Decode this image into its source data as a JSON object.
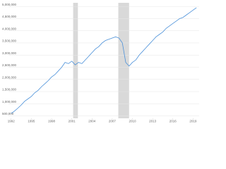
{
  "chart_data": {
    "type": "line",
    "x": [
      1992,
      1992.5,
      1993,
      1993.5,
      1994,
      1994.5,
      1995,
      1995.5,
      1996,
      1996.5,
      1997,
      1997.5,
      1998,
      1998.5,
      1999,
      1999.5,
      2000,
      2000.5,
      2001,
      2001.5,
      2002,
      2002.5,
      2003,
      2003.5,
      2004,
      2004.5,
      2005,
      2005.5,
      2006,
      2006.5,
      2007,
      2007.5,
      2008,
      2008.5,
      2009,
      2009.5,
      2010,
      2010.5,
      2011,
      2011.5,
      2012,
      2012.5,
      2013,
      2013.5,
      2014,
      2014.5,
      2015,
      2015.5,
      2016,
      2016.5,
      2017,
      2017.5,
      2018,
      2018.5,
      2019,
      2019.5
    ],
    "series": [
      {
        "color": "#4a90d9",
        "values": [
          600000,
          700000,
          820000,
          950000,
          1100000,
          1200000,
          1300000,
          1450000,
          1550000,
          1700000,
          1820000,
          1950000,
          2100000,
          2200000,
          2350000,
          2500000,
          2700000,
          2650000,
          2750000,
          2600000,
          2700000,
          2650000,
          2800000,
          2950000,
          3100000,
          3250000,
          3350000,
          3500000,
          3600000,
          3650000,
          3700000,
          3750000,
          3700000,
          3500000,
          2700000,
          2550000,
          2700000,
          2800000,
          3000000,
          3150000,
          3300000,
          3450000,
          3600000,
          3750000,
          3850000,
          3950000,
          4100000,
          4200000,
          4300000,
          4400000,
          4500000,
          4550000,
          4650000,
          4750000,
          4850000,
          4950000
        ]
      }
    ],
    "shaded_ranges": [
      [
        2001.2,
        2001.9
      ],
      [
        2007.9,
        2009.5
      ]
    ],
    "shade_color": "#d9d9d9",
    "xlim": [
      1991.6,
      2019.9
    ],
    "xticks": [
      1992,
      1995,
      1998,
      2001,
      2004,
      2007,
      2010,
      2013,
      2016,
      2019
    ],
    "ylim": [
      400000,
      5150000
    ],
    "yticks": [
      {
        "value": 500000,
        "label": "500,000"
      },
      {
        "value": 1000000,
        "label": "1,000,000"
      },
      {
        "value": 1500000,
        "label": "1,500,000"
      },
      {
        "value": 2000000,
        "label": "2,000,000"
      },
      {
        "value": 2500000,
        "label": "2,500,000"
      },
      {
        "value": 3000000,
        "label": "3,000,000"
      },
      {
        "value": 3500000,
        "label": "3,500,000"
      },
      {
        "value": 4000000,
        "label": "4,000,000"
      },
      {
        "value": 4500000,
        "label": "4,500,000"
      },
      {
        "value": 5000000,
        "label": "5,000,000"
      }
    ],
    "grid": true
  }
}
